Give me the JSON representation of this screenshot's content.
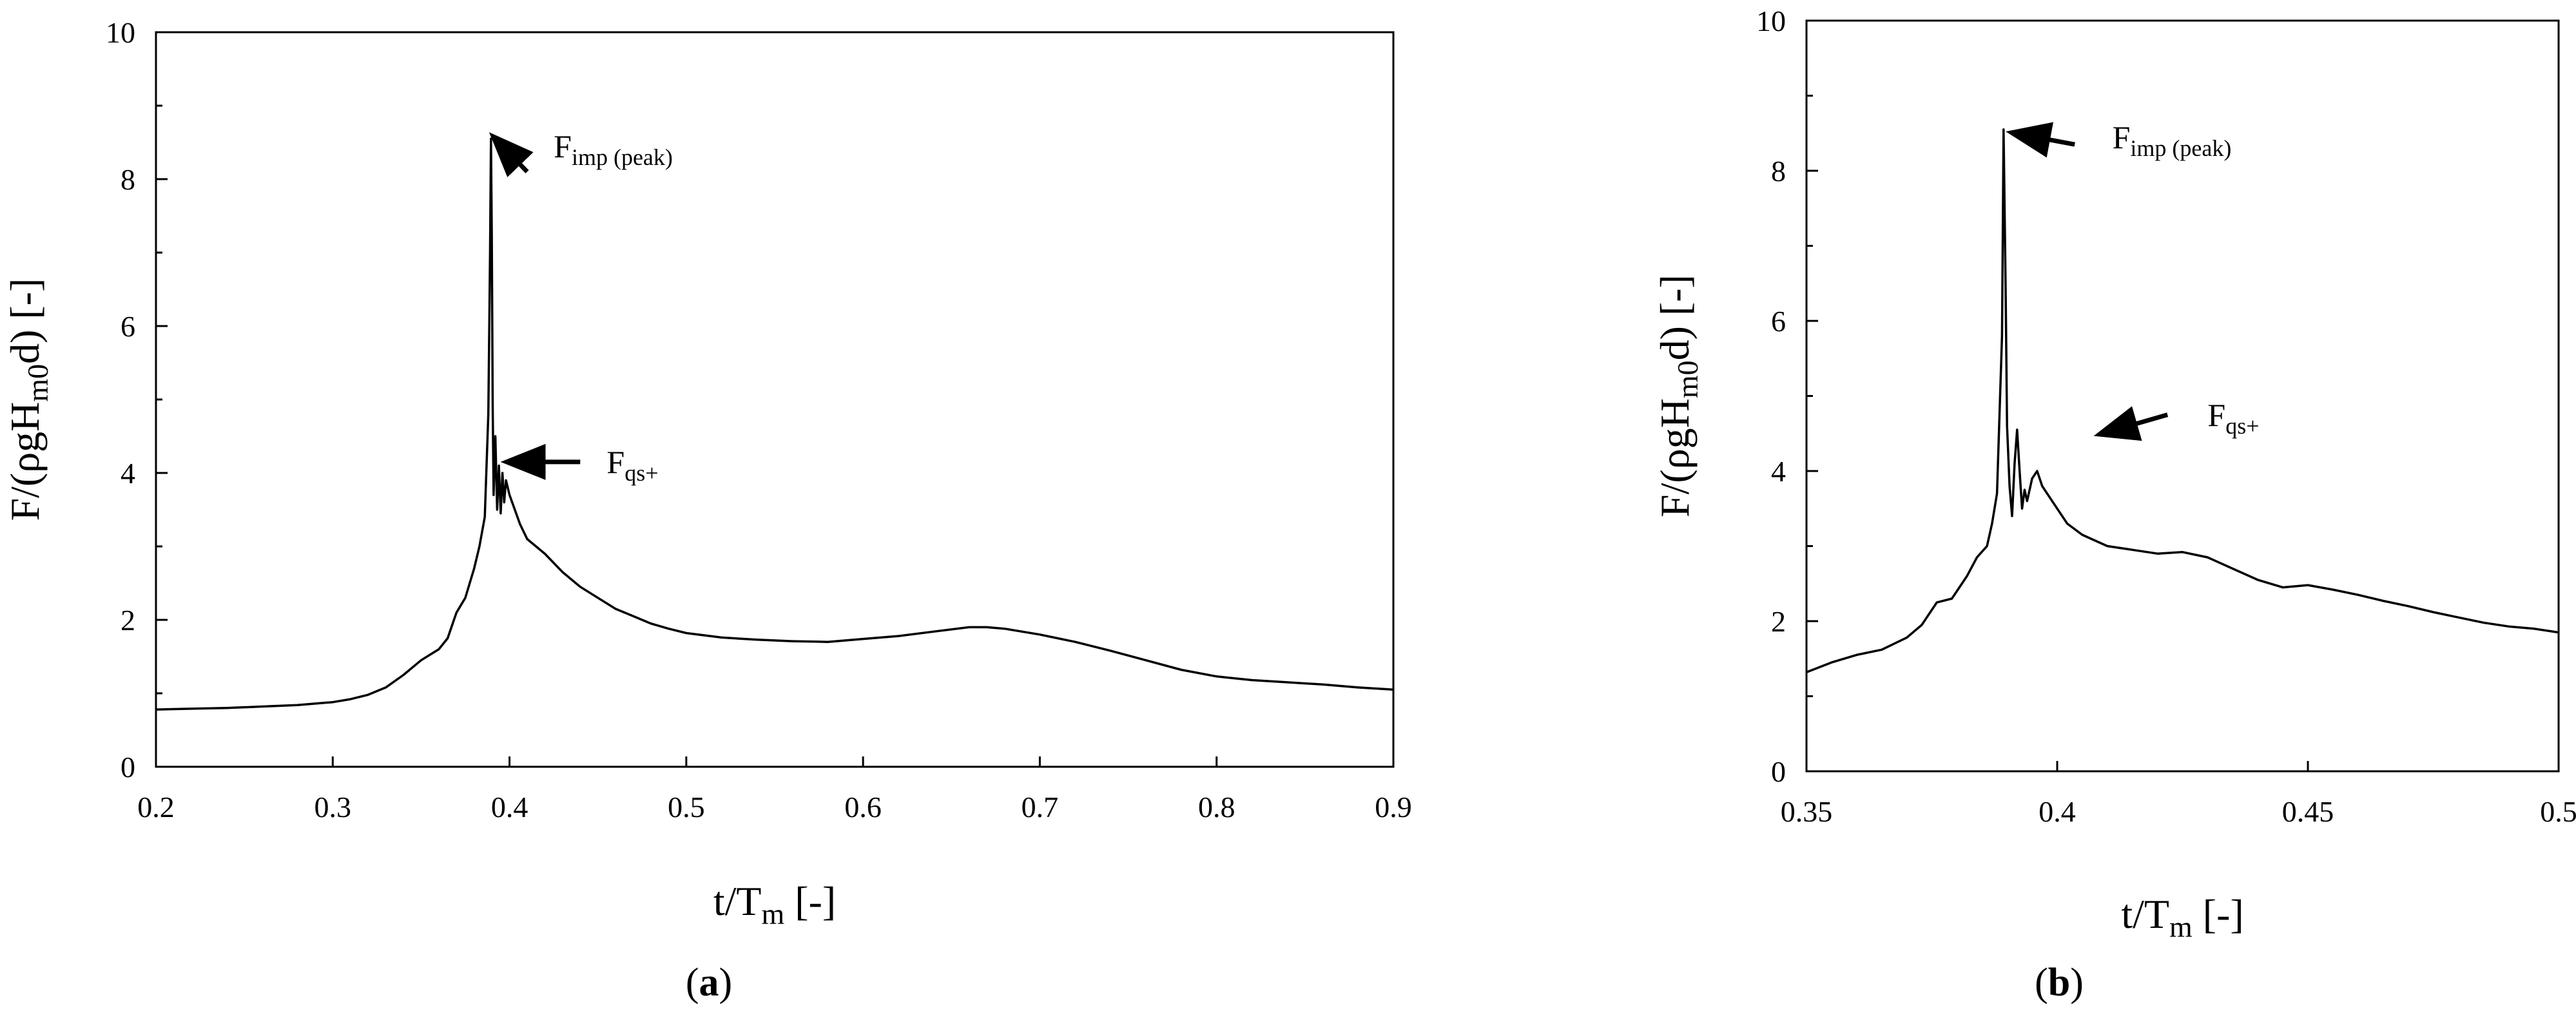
{
  "chart_data": [
    {
      "type": "line",
      "panel_label": {
        "open": "(",
        "letter": "a",
        "close": ")"
      },
      "xlabel": {
        "base": "t/T",
        "sub": "m",
        "tail": " [-]"
      },
      "ylabel": {
        "pre": "F/(ρgH",
        "sub": "m0",
        "post": "d) [-]"
      },
      "xlim": [
        0.2,
        0.9
      ],
      "ylim": [
        0,
        10
      ],
      "xticks": [
        "0.2",
        "0.3",
        "0.4",
        "0.5",
        "0.6",
        "0.7",
        "0.8",
        "0.9"
      ],
      "yticks": [
        "0",
        "2",
        "4",
        "6",
        "8",
        "10"
      ],
      "grid": false,
      "series": [
        {
          "x": [
            0.2,
            0.22,
            0.24,
            0.26,
            0.28,
            0.3,
            0.31,
            0.32,
            0.33,
            0.34,
            0.35,
            0.36,
            0.365,
            0.37,
            0.375,
            0.38,
            0.383,
            0.386,
            0.388,
            0.389,
            0.3895,
            0.39,
            0.3905,
            0.391,
            0.392,
            0.393,
            0.394,
            0.395,
            0.396,
            0.397,
            0.398,
            0.4,
            0.403,
            0.406,
            0.41,
            0.415,
            0.42,
            0.43,
            0.44,
            0.45,
            0.46,
            0.47,
            0.48,
            0.49,
            0.5,
            0.52,
            0.54,
            0.56,
            0.58,
            0.6,
            0.62,
            0.64,
            0.66,
            0.67,
            0.68,
            0.7,
            0.72,
            0.74,
            0.76,
            0.78,
            0.8,
            0.82,
            0.84,
            0.86,
            0.88,
            0.9
          ],
          "y": [
            0.78,
            0.79,
            0.8,
            0.82,
            0.84,
            0.88,
            0.92,
            0.98,
            1.08,
            1.25,
            1.45,
            1.6,
            1.75,
            2.1,
            2.3,
            2.7,
            3.0,
            3.4,
            4.8,
            7.0,
            8.55,
            7.2,
            4.9,
            3.7,
            4.5,
            3.5,
            4.1,
            3.45,
            4.0,
            3.6,
            3.9,
            3.7,
            3.5,
            3.3,
            3.1,
            3.0,
            2.9,
            2.65,
            2.45,
            2.3,
            2.15,
            2.05,
            1.95,
            1.88,
            1.82,
            1.76,
            1.73,
            1.71,
            1.7,
            1.74,
            1.78,
            1.84,
            1.9,
            1.9,
            1.88,
            1.8,
            1.7,
            1.58,
            1.45,
            1.32,
            1.23,
            1.18,
            1.15,
            1.12,
            1.08,
            1.05
          ]
        }
      ],
      "annotations": [
        {
          "base": "F",
          "sub": "imp (peak)",
          "x": 0.425,
          "y": 8.3,
          "arrow_from": [
            0.41,
            8.1
          ],
          "arrow_to": [
            0.392,
            8.55
          ]
        },
        {
          "base": "F",
          "sub": "qs+",
          "x": 0.455,
          "y": 4.0,
          "arrow_from": [
            0.44,
            4.15
          ],
          "arrow_to": [
            0.4,
            4.15
          ]
        }
      ]
    },
    {
      "type": "line",
      "panel_label": {
        "open": "(",
        "letter": "b",
        "close": ")"
      },
      "xlabel": {
        "base": "t/T",
        "sub": "m",
        "tail": " [-]"
      },
      "ylabel": {
        "pre": "F/(ρgH",
        "sub": "m0",
        "post": "d) [-]"
      },
      "xlim": [
        0.35,
        0.5
      ],
      "ylim": [
        0,
        10
      ],
      "xticks": [
        "0.35",
        "0.4",
        "0.45",
        "0.5"
      ],
      "yticks": [
        "0",
        "2",
        "4",
        "6",
        "8",
        "10"
      ],
      "grid": false,
      "series": [
        {
          "x": [
            0.35,
            0.355,
            0.36,
            0.365,
            0.37,
            0.373,
            0.376,
            0.379,
            0.382,
            0.384,
            0.386,
            0.387,
            0.388,
            0.389,
            0.3893,
            0.3897,
            0.39,
            0.3905,
            0.391,
            0.3915,
            0.392,
            0.3925,
            0.393,
            0.3935,
            0.394,
            0.395,
            0.396,
            0.397,
            0.398,
            0.4,
            0.402,
            0.405,
            0.41,
            0.415,
            0.42,
            0.425,
            0.43,
            0.435,
            0.44,
            0.445,
            0.45,
            0.455,
            0.46,
            0.465,
            0.47,
            0.475,
            0.48,
            0.485,
            0.49,
            0.495,
            0.5
          ],
          "y": [
            1.32,
            1.45,
            1.55,
            1.62,
            1.78,
            1.95,
            2.25,
            2.3,
            2.6,
            2.85,
            3.0,
            3.3,
            3.7,
            5.8,
            8.55,
            6.5,
            4.6,
            3.8,
            3.4,
            4.1,
            4.55,
            4.0,
            3.5,
            3.75,
            3.6,
            3.9,
            4.0,
            3.8,
            3.7,
            3.5,
            3.3,
            3.15,
            3.0,
            2.95,
            2.9,
            2.92,
            2.85,
            2.7,
            2.55,
            2.45,
            2.48,
            2.42,
            2.35,
            2.27,
            2.2,
            2.12,
            2.05,
            1.98,
            1.93,
            1.9,
            1.85
          ]
        }
      ],
      "annotations": [
        {
          "base": "F",
          "sub": "imp (peak)",
          "x": 0.411,
          "y": 8.3,
          "arrow_from": [
            0.4035,
            8.35
          ],
          "arrow_to": [
            0.3915,
            8.5
          ]
        },
        {
          "base": "F",
          "sub": "qs+",
          "x": 0.43,
          "y": 4.6,
          "arrow_from": [
            0.422,
            4.75
          ],
          "arrow_to": [
            0.409,
            4.5
          ]
        }
      ]
    }
  ]
}
